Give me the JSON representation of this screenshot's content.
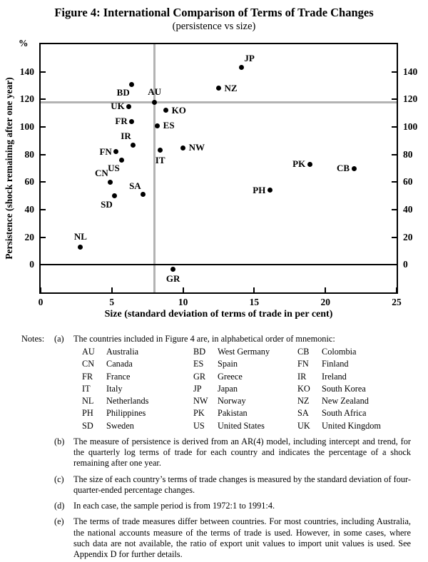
{
  "figure": {
    "title": "Figure 4: International Comparison of Terms of Trade Changes",
    "subtitle": "(persistence vs size)"
  },
  "chart_data": {
    "type": "scatter",
    "title": "Figure 4: International Comparison of Terms of Trade Changes (persistence vs size)",
    "xlabel": "Size (standard deviation of terms of trade in per cent)",
    "ylabel": "Persistence (shock remaining after one year)",
    "y_unit": "%",
    "xlim": [
      0,
      25
    ],
    "ylim": [
      -20,
      160
    ],
    "x_ticks": [
      0,
      5,
      10,
      15,
      20,
      25
    ],
    "y_ticks": [
      0,
      20,
      40,
      60,
      80,
      100,
      120,
      140
    ],
    "grid": false,
    "reference_lines": {
      "vertical_x": 8,
      "horizontal_y": 118
    },
    "points": [
      {
        "label": "JP",
        "x": 14.1,
        "y": 143,
        "label_pos": "right-above"
      },
      {
        "label": "NZ",
        "x": 12.5,
        "y": 128,
        "label_pos": "right"
      },
      {
        "label": "BD",
        "x": 6.4,
        "y": 131,
        "label_pos": "left-below"
      },
      {
        "label": "AU",
        "x": 8.0,
        "y": 118,
        "label_pos": "above"
      },
      {
        "label": "UK",
        "x": 6.2,
        "y": 115,
        "label_pos": "left"
      },
      {
        "label": "KO",
        "x": 8.8,
        "y": 112,
        "label_pos": "right"
      },
      {
        "label": "FR",
        "x": 6.4,
        "y": 104,
        "label_pos": "left"
      },
      {
        "label": "ES",
        "x": 8.2,
        "y": 101,
        "label_pos": "right"
      },
      {
        "label": "IR",
        "x": 6.5,
        "y": 87,
        "label_pos": "left-above"
      },
      {
        "label": "NW",
        "x": 10.0,
        "y": 85,
        "label_pos": "right"
      },
      {
        "label": "IT",
        "x": 8.4,
        "y": 83,
        "label_pos": "below"
      },
      {
        "label": "FN",
        "x": 5.3,
        "y": 82,
        "label_pos": "left"
      },
      {
        "label": "US",
        "x": 5.7,
        "y": 76,
        "label_pos": "left-below"
      },
      {
        "label": "PK",
        "x": 18.9,
        "y": 73,
        "label_pos": "left"
      },
      {
        "label": "CB",
        "x": 22.0,
        "y": 70,
        "label_pos": "left"
      },
      {
        "label": "CN",
        "x": 4.9,
        "y": 60,
        "label_pos": "left-above"
      },
      {
        "label": "PH",
        "x": 16.1,
        "y": 54,
        "label_pos": "left"
      },
      {
        "label": "SA",
        "x": 7.2,
        "y": 51,
        "label_pos": "left-above"
      },
      {
        "label": "SD",
        "x": 5.2,
        "y": 50,
        "label_pos": "left-below"
      },
      {
        "label": "NL",
        "x": 2.8,
        "y": 13,
        "label_pos": "above"
      },
      {
        "label": "GR",
        "x": 9.3,
        "y": -3,
        "label_pos": "below"
      }
    ]
  },
  "notes": {
    "label": "Notes:",
    "items": [
      {
        "marker": "(a)",
        "text": "The countries included in Figure 4 are, in alphabetical order of mnemonic:",
        "table": [
          [
            [
              "AU",
              "Australia"
            ],
            [
              "BD",
              "West Germany"
            ],
            [
              "CB",
              "Colombia"
            ]
          ],
          [
            [
              "CN",
              "Canada"
            ],
            [
              "ES",
              "Spain"
            ],
            [
              "FN",
              "Finland"
            ]
          ],
          [
            [
              "FR",
              "France"
            ],
            [
              "GR",
              "Greece"
            ],
            [
              "IR",
              "Ireland"
            ]
          ],
          [
            [
              "IT",
              "Italy"
            ],
            [
              "JP",
              "Japan"
            ],
            [
              "KO",
              "South Korea"
            ]
          ],
          [
            [
              "NL",
              "Netherlands"
            ],
            [
              "NW",
              "Norway"
            ],
            [
              "NZ",
              "New Zealand"
            ]
          ],
          [
            [
              "PH",
              "Philippines"
            ],
            [
              "PK",
              "Pakistan"
            ],
            [
              "SA",
              "South Africa"
            ]
          ],
          [
            [
              "SD",
              "Sweden"
            ],
            [
              "US",
              "United States"
            ],
            [
              "UK",
              "United Kingdom"
            ]
          ]
        ]
      },
      {
        "marker": "(b)",
        "text": "The measure of persistence is derived from an AR(4) model, including intercept and trend, for the quarterly log terms of trade for each country and indicates the percentage of a shock remaining after one year."
      },
      {
        "marker": "(c)",
        "text": "The size of each country’s terms of trade changes is measured by the standard deviation of four-quarter-ended percentage changes."
      },
      {
        "marker": "(d)",
        "text": "In each case, the sample period is from 1972:1 to 1991:4."
      },
      {
        "marker": "(e)",
        "text": "The terms of trade measures differ between countries. For most countries, including Australia, the national accounts measure of the terms of trade is used. However, in some cases, where such data are not available, the ratio of export unit values to import unit values is used. See Appendix D for further details."
      }
    ]
  }
}
